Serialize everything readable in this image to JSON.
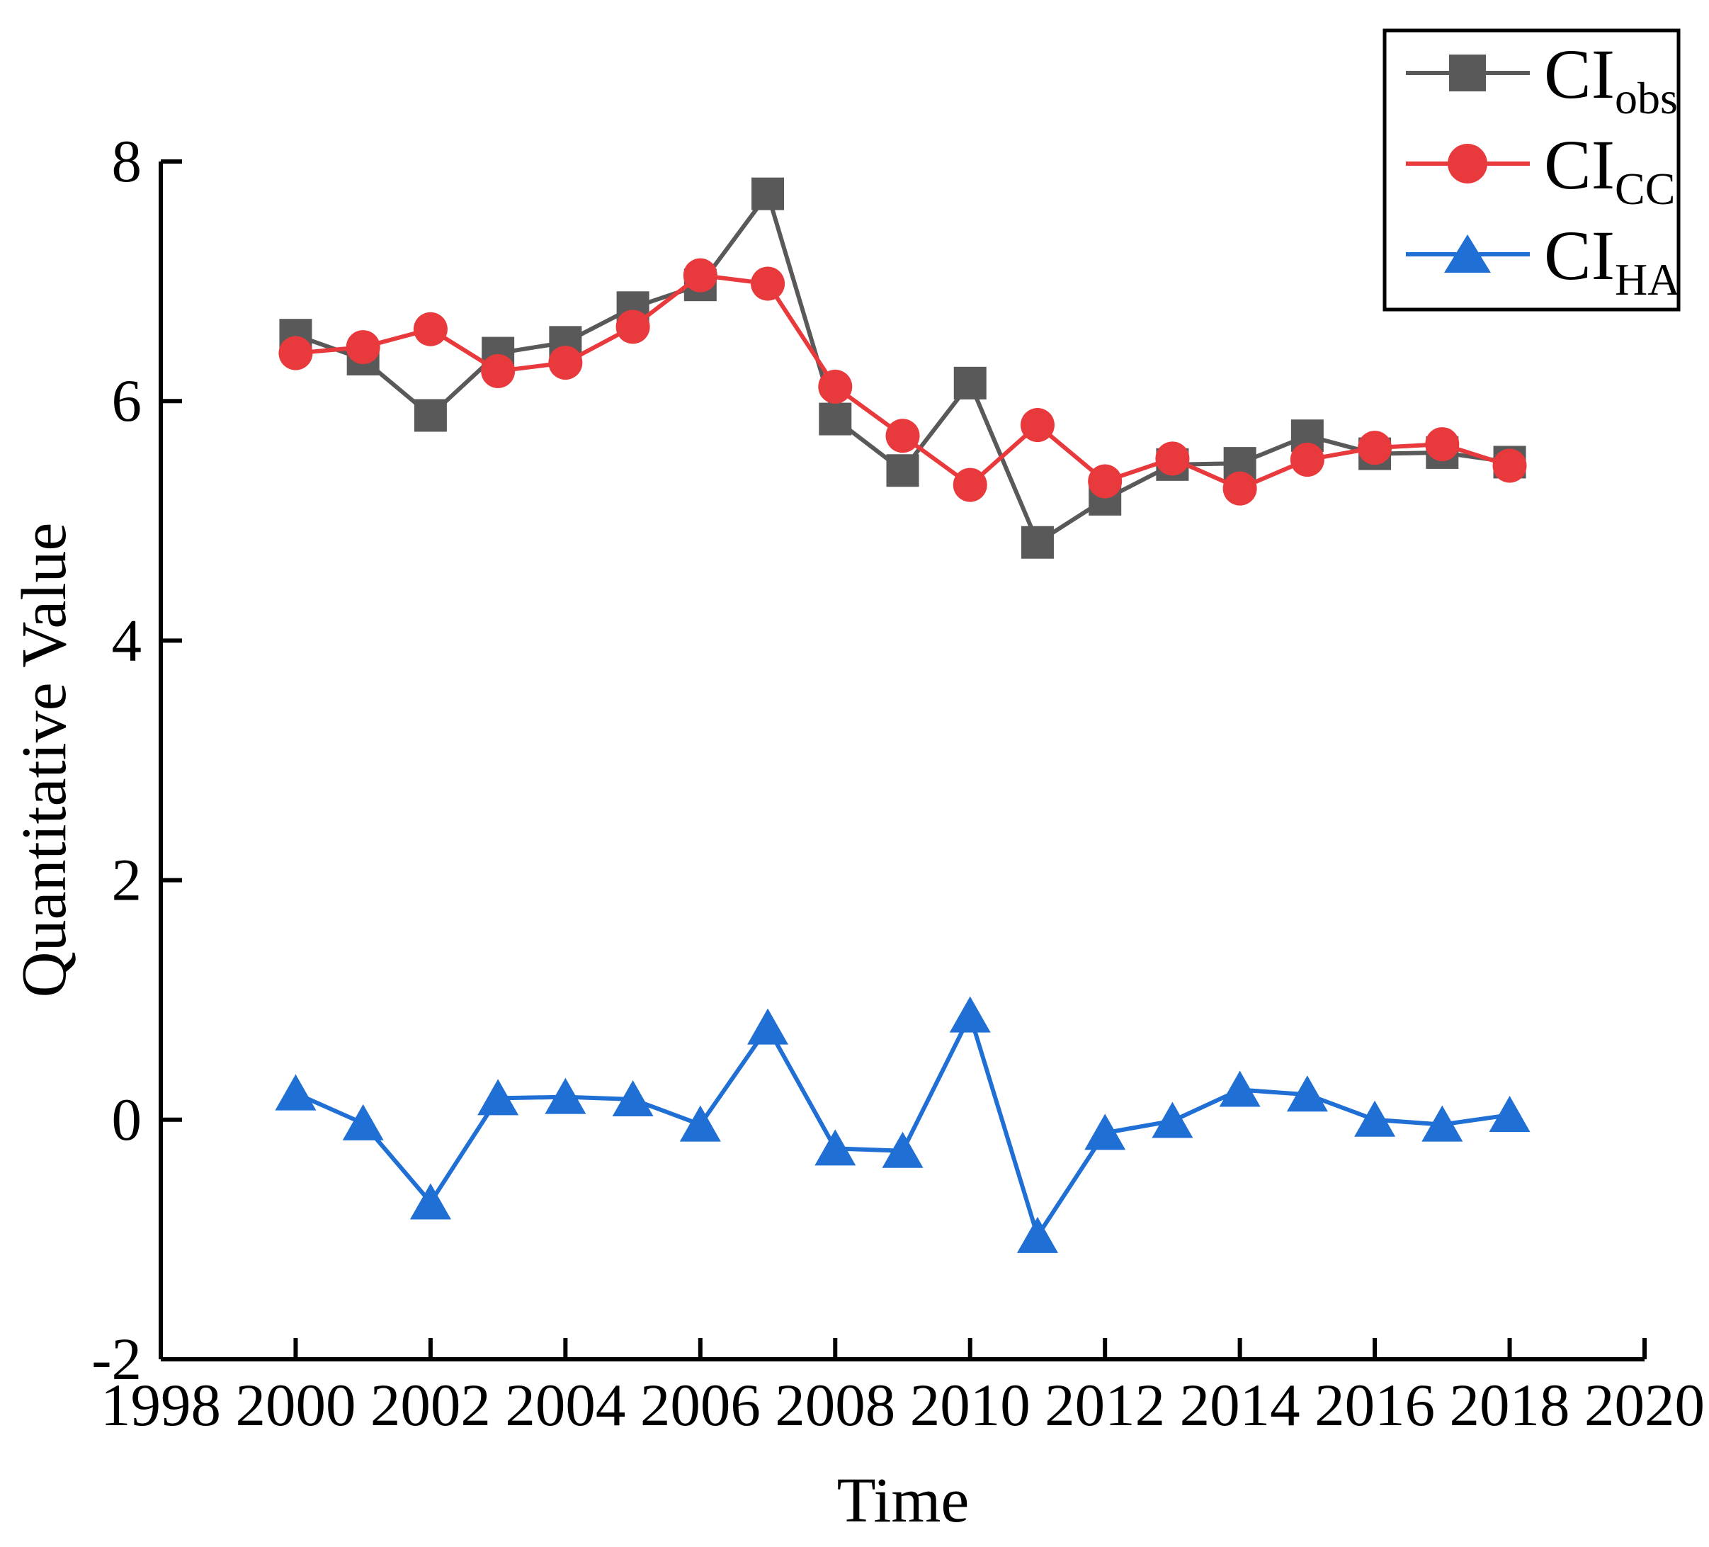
{
  "chart_data": {
    "type": "line",
    "title": "",
    "xlabel": "Time",
    "ylabel": "Quantitative Value",
    "xlim": [
      1998,
      2020
    ],
    "ylim": [
      -2,
      8
    ],
    "x_ticks": [
      1998,
      2000,
      2002,
      2004,
      2006,
      2008,
      2010,
      2012,
      2014,
      2016,
      2018,
      2020
    ],
    "y_ticks": [
      8,
      6,
      4,
      2,
      0,
      -2
    ],
    "grid": false,
    "legend_position": "top-right",
    "x": [
      2000,
      2001,
      2002,
      2003,
      2004,
      2005,
      2006,
      2007,
      2008,
      2009,
      2010,
      2011,
      2012,
      2013,
      2014,
      2015,
      2016,
      2017,
      2018
    ],
    "series": [
      {
        "name": "CI_obs",
        "label_main": "CI",
        "label_sub": "obs",
        "marker": "square",
        "color": "#595959",
        "values": [
          6.55,
          6.35,
          5.88,
          6.4,
          6.49,
          6.78,
          6.97,
          7.73,
          5.85,
          5.42,
          6.15,
          4.82,
          5.18,
          5.47,
          5.48,
          5.71,
          5.56,
          5.57,
          5.49
        ]
      },
      {
        "name": "CI_CC",
        "label_main": "CI",
        "label_sub": "CC",
        "marker": "circle",
        "color": "#e83a3c",
        "values": [
          6.4,
          6.45,
          6.6,
          6.25,
          6.32,
          6.62,
          7.05,
          6.98,
          6.12,
          5.71,
          5.3,
          5.8,
          5.33,
          5.52,
          5.27,
          5.51,
          5.61,
          5.64,
          5.46
        ]
      },
      {
        "name": "CI_HA",
        "label_main": "CI",
        "label_sub": "HA",
        "marker": "triangle-up",
        "color": "#1f6fd4",
        "values": [
          0.22,
          -0.03,
          -0.69,
          0.18,
          0.19,
          0.17,
          -0.04,
          0.77,
          -0.24,
          -0.26,
          0.87,
          -0.97,
          -0.11,
          -0.01,
          0.25,
          0.21,
          0.0,
          -0.04,
          0.04
        ]
      }
    ]
  }
}
